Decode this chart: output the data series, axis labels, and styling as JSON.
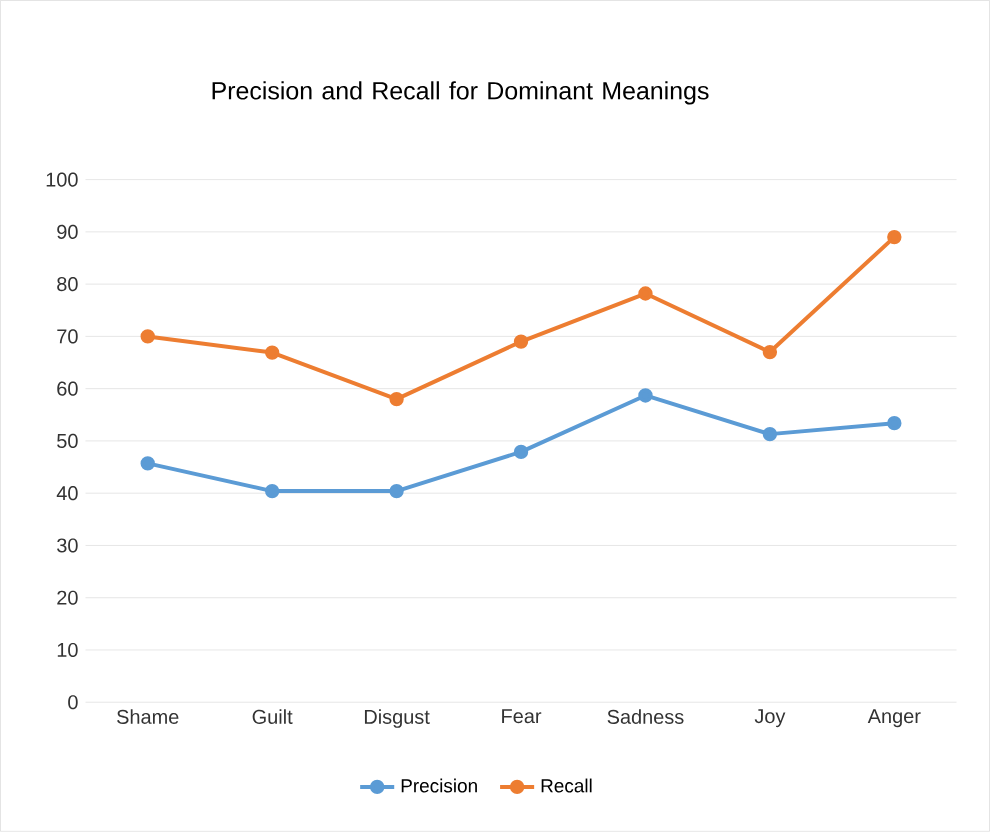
{
  "chart_data": {
    "type": "line",
    "title": "Precision and Recall for Dominant Meanings",
    "categories": [
      "Shame",
      "Guilt",
      "Disgust",
      "Fear",
      "Sadness",
      "Joy",
      "Anger"
    ],
    "series": [
      {
        "name": "Precision",
        "color": "#5b9bd5",
        "values": [
          45.7,
          40.4,
          40.4,
          47.9,
          58.7,
          51.3,
          53.4
        ]
      },
      {
        "name": "Recall",
        "color": "#ed7d31",
        "values": [
          70,
          66.9,
          58,
          69,
          78.2,
          67,
          89
        ]
      }
    ],
    "ylim": [
      0,
      100
    ],
    "yticks": [
      0,
      10,
      20,
      30,
      40,
      50,
      60,
      70,
      80,
      90,
      100
    ],
    "grid": "y",
    "legend": "bottom",
    "marker": "circle",
    "line_style": "solid"
  }
}
